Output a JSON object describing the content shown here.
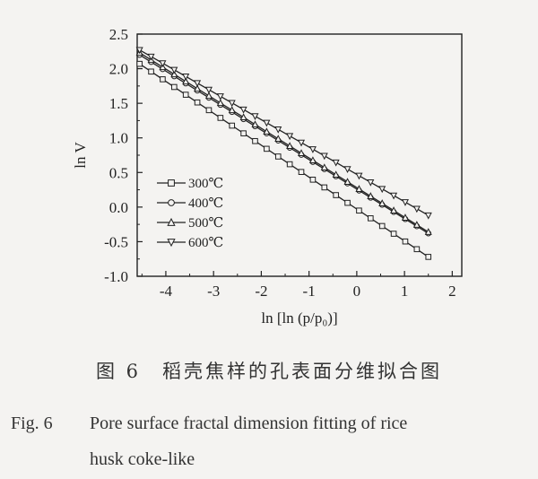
{
  "chart_data": {
    "type": "line",
    "xlabel": "ln [ln (p/p₀)]",
    "ylabel": "ln V",
    "xlim": [
      -4.6,
      2.2
    ],
    "ylim": [
      -1.0,
      2.5
    ],
    "x_ticks": [
      "-4",
      "-3",
      "-2",
      "-1",
      "0",
      "1",
      "2"
    ],
    "x_tick_values": [
      -4,
      -3,
      -2,
      -1,
      0,
      1,
      2
    ],
    "y_ticks": [
      "2.5",
      "2.0",
      "1.5",
      "1.0",
      "0.5",
      "0.0",
      "-0.5",
      "-1.0"
    ],
    "y_tick_values": [
      2.5,
      2.0,
      1.5,
      1.0,
      0.5,
      0.0,
      -0.5,
      -1.0
    ],
    "legend_position": "lower-left",
    "series": [
      {
        "name": "300℃",
        "marker": "square",
        "x_start": -4.55,
        "x_end": 1.5,
        "y_start": 2.07,
        "y_end": -0.72
      },
      {
        "name": "400℃",
        "marker": "circle",
        "x_start": -4.55,
        "x_end": 1.5,
        "y_start": 2.2,
        "y_end": -0.38
      },
      {
        "name": "500℃",
        "marker": "triangle-up",
        "x_start": -4.55,
        "x_end": 1.5,
        "y_start": 2.23,
        "y_end": -0.36
      },
      {
        "name": "600℃",
        "marker": "triangle-down",
        "x_start": -4.55,
        "x_end": 1.5,
        "y_start": 2.27,
        "y_end": -0.12
      }
    ]
  },
  "caption": {
    "cn": "图 6　稻壳焦样的孔表面分维拟合图",
    "en_fig_no": "Fig. 6",
    "en_line1": "Pore surface fractal dimension fitting of rice",
    "en_line2": "husk coke-like"
  }
}
